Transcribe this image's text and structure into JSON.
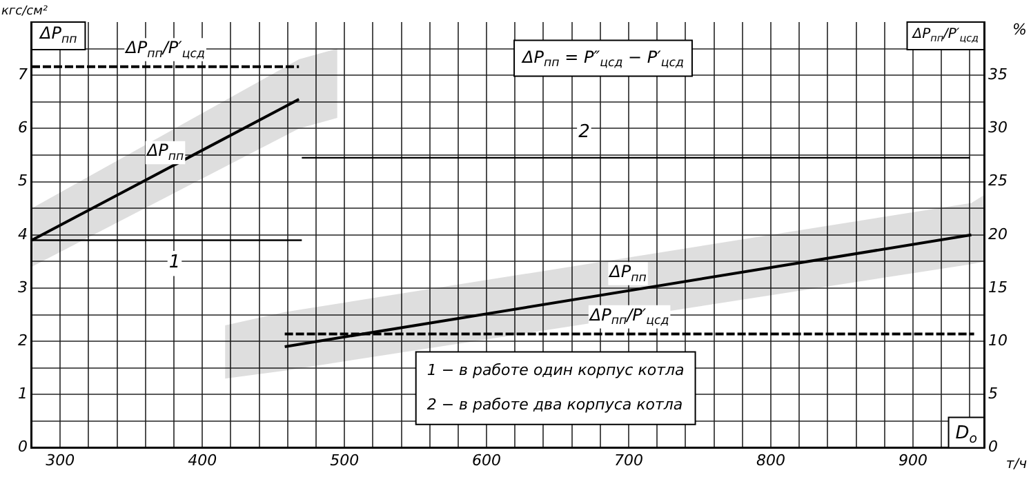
{
  "chart_data": {
    "type": "line",
    "xlabel": "D$_{o}$",
    "ylabel": "ΔP$_{пп}$",
    "y2label": "ΔP$_{пп}$/P′$_{цсд}$",
    "xlim": [
      280,
      950
    ],
    "ylim": [
      0,
      8
    ],
    "y2lim": [
      0,
      40
    ],
    "xticks": [
      {
        "value": 280,
        "label": null
      },
      300,
      {
        "value": 320,
        "label": null
      },
      {
        "value": 340,
        "label": null
      },
      {
        "value": 360,
        "label": null
      },
      {
        "value": 380,
        "label": null
      },
      400,
      {
        "value": 420,
        "label": null
      },
      {
        "value": 440,
        "label": null
      },
      {
        "value": 460,
        "label": null
      },
      {
        "value": 480,
        "label": null
      },
      500,
      {
        "value": 520,
        "label": null
      },
      {
        "value": 540,
        "label": null
      },
      {
        "value": 560,
        "label": null
      },
      {
        "value": 580,
        "label": null
      },
      600,
      {
        "value": 620,
        "label": null
      },
      {
        "value": 640,
        "label": null
      },
      {
        "value": 660,
        "label": null
      },
      {
        "value": 680,
        "label": null
      },
      700,
      {
        "value": 720,
        "label": null
      },
      {
        "value": 740,
        "label": null
      },
      {
        "value": 760,
        "label": null
      },
      {
        "value": 780,
        "label": null
      },
      800,
      {
        "value": 820,
        "label": null
      },
      {
        "value": 840,
        "label": null
      },
      {
        "value": 860,
        "label": null
      },
      {
        "value": 880,
        "label": null
      },
      900,
      {
        "value": 920,
        "label": null
      },
      {
        "value": 940,
        "label": null
      }
    ],
    "yticks": [
      0,
      {
        "value": 0.5,
        "label": null
      },
      1,
      {
        "value": 1.5,
        "label": null
      },
      2,
      {
        "value": 2.5,
        "label": null
      },
      3,
      {
        "value": 3.5,
        "label": null
      },
      4,
      {
        "value": 4.5,
        "label": null
      },
      5,
      {
        "value": 5.5,
        "label": null
      },
      6,
      {
        "value": 6.5,
        "label": null
      },
      7,
      {
        "value": 7.5,
        "label": null
      }
    ],
    "y2ticks": [
      0,
      5,
      10,
      15,
      20,
      25,
      30,
      35
    ],
    "grid": true,
    "legend": false,
    "marker": "none",
    "series": [
      {
        "name": "ΔP$_{пп}$",
        "color": "#000000",
        "x": [
          280,
          468,
          495
        ],
        "values": [
          3.9,
          6.55,
          null
        ],
        "lower": [
          3.4,
          6.0,
          6.2
        ],
        "upper": [
          4.5,
          7.3,
          7.5
        ]
      },
      {
        "name": "ΔP$_{пп}$",
        "color": "#000000",
        "x": [
          416,
          458,
          941,
          950
        ],
        "values": [
          null,
          1.9,
          4.0,
          null
        ],
        "lower": [
          1.3,
          1.45,
          3.45,
          3.5
        ],
        "upper": [
          2.3,
          2.55,
          4.6,
          4.75
        ]
      },
      {
        "name": "ΔP$_{пп}$/P′$_{цсд}$",
        "color": "#000000",
        "line_style": "dashed",
        "axis": "y2",
        "x": [
          280,
          468
        ],
        "values": [
          35.8,
          35.8
        ]
      },
      {
        "name": "ΔP$_{пп}$/P′$_{цсд}$",
        "color": "#000000",
        "line_style": "dashed",
        "axis": "y2",
        "x": [
          458,
          943
        ],
        "values": [
          10.7,
          10.7
        ]
      },
      {
        "color": "#000000",
        "x": [
          280,
          470
        ],
        "values": [
          3.9,
          3.9
        ]
      },
      {
        "color": "#000000",
        "x": [
          470,
          940
        ],
        "values": [
          5.45,
          5.45
        ]
      }
    ],
    "annotations": [
      "кгс/см²",
      "%",
      "т/ч",
      "ΔP$_{пп}$ = P″$_{цсд}$ − P′$_{цсд}$",
      "1 − в работе один корпус котла",
      "2 − в работе два корпуса котла",
      "1",
      "2"
    ]
  }
}
